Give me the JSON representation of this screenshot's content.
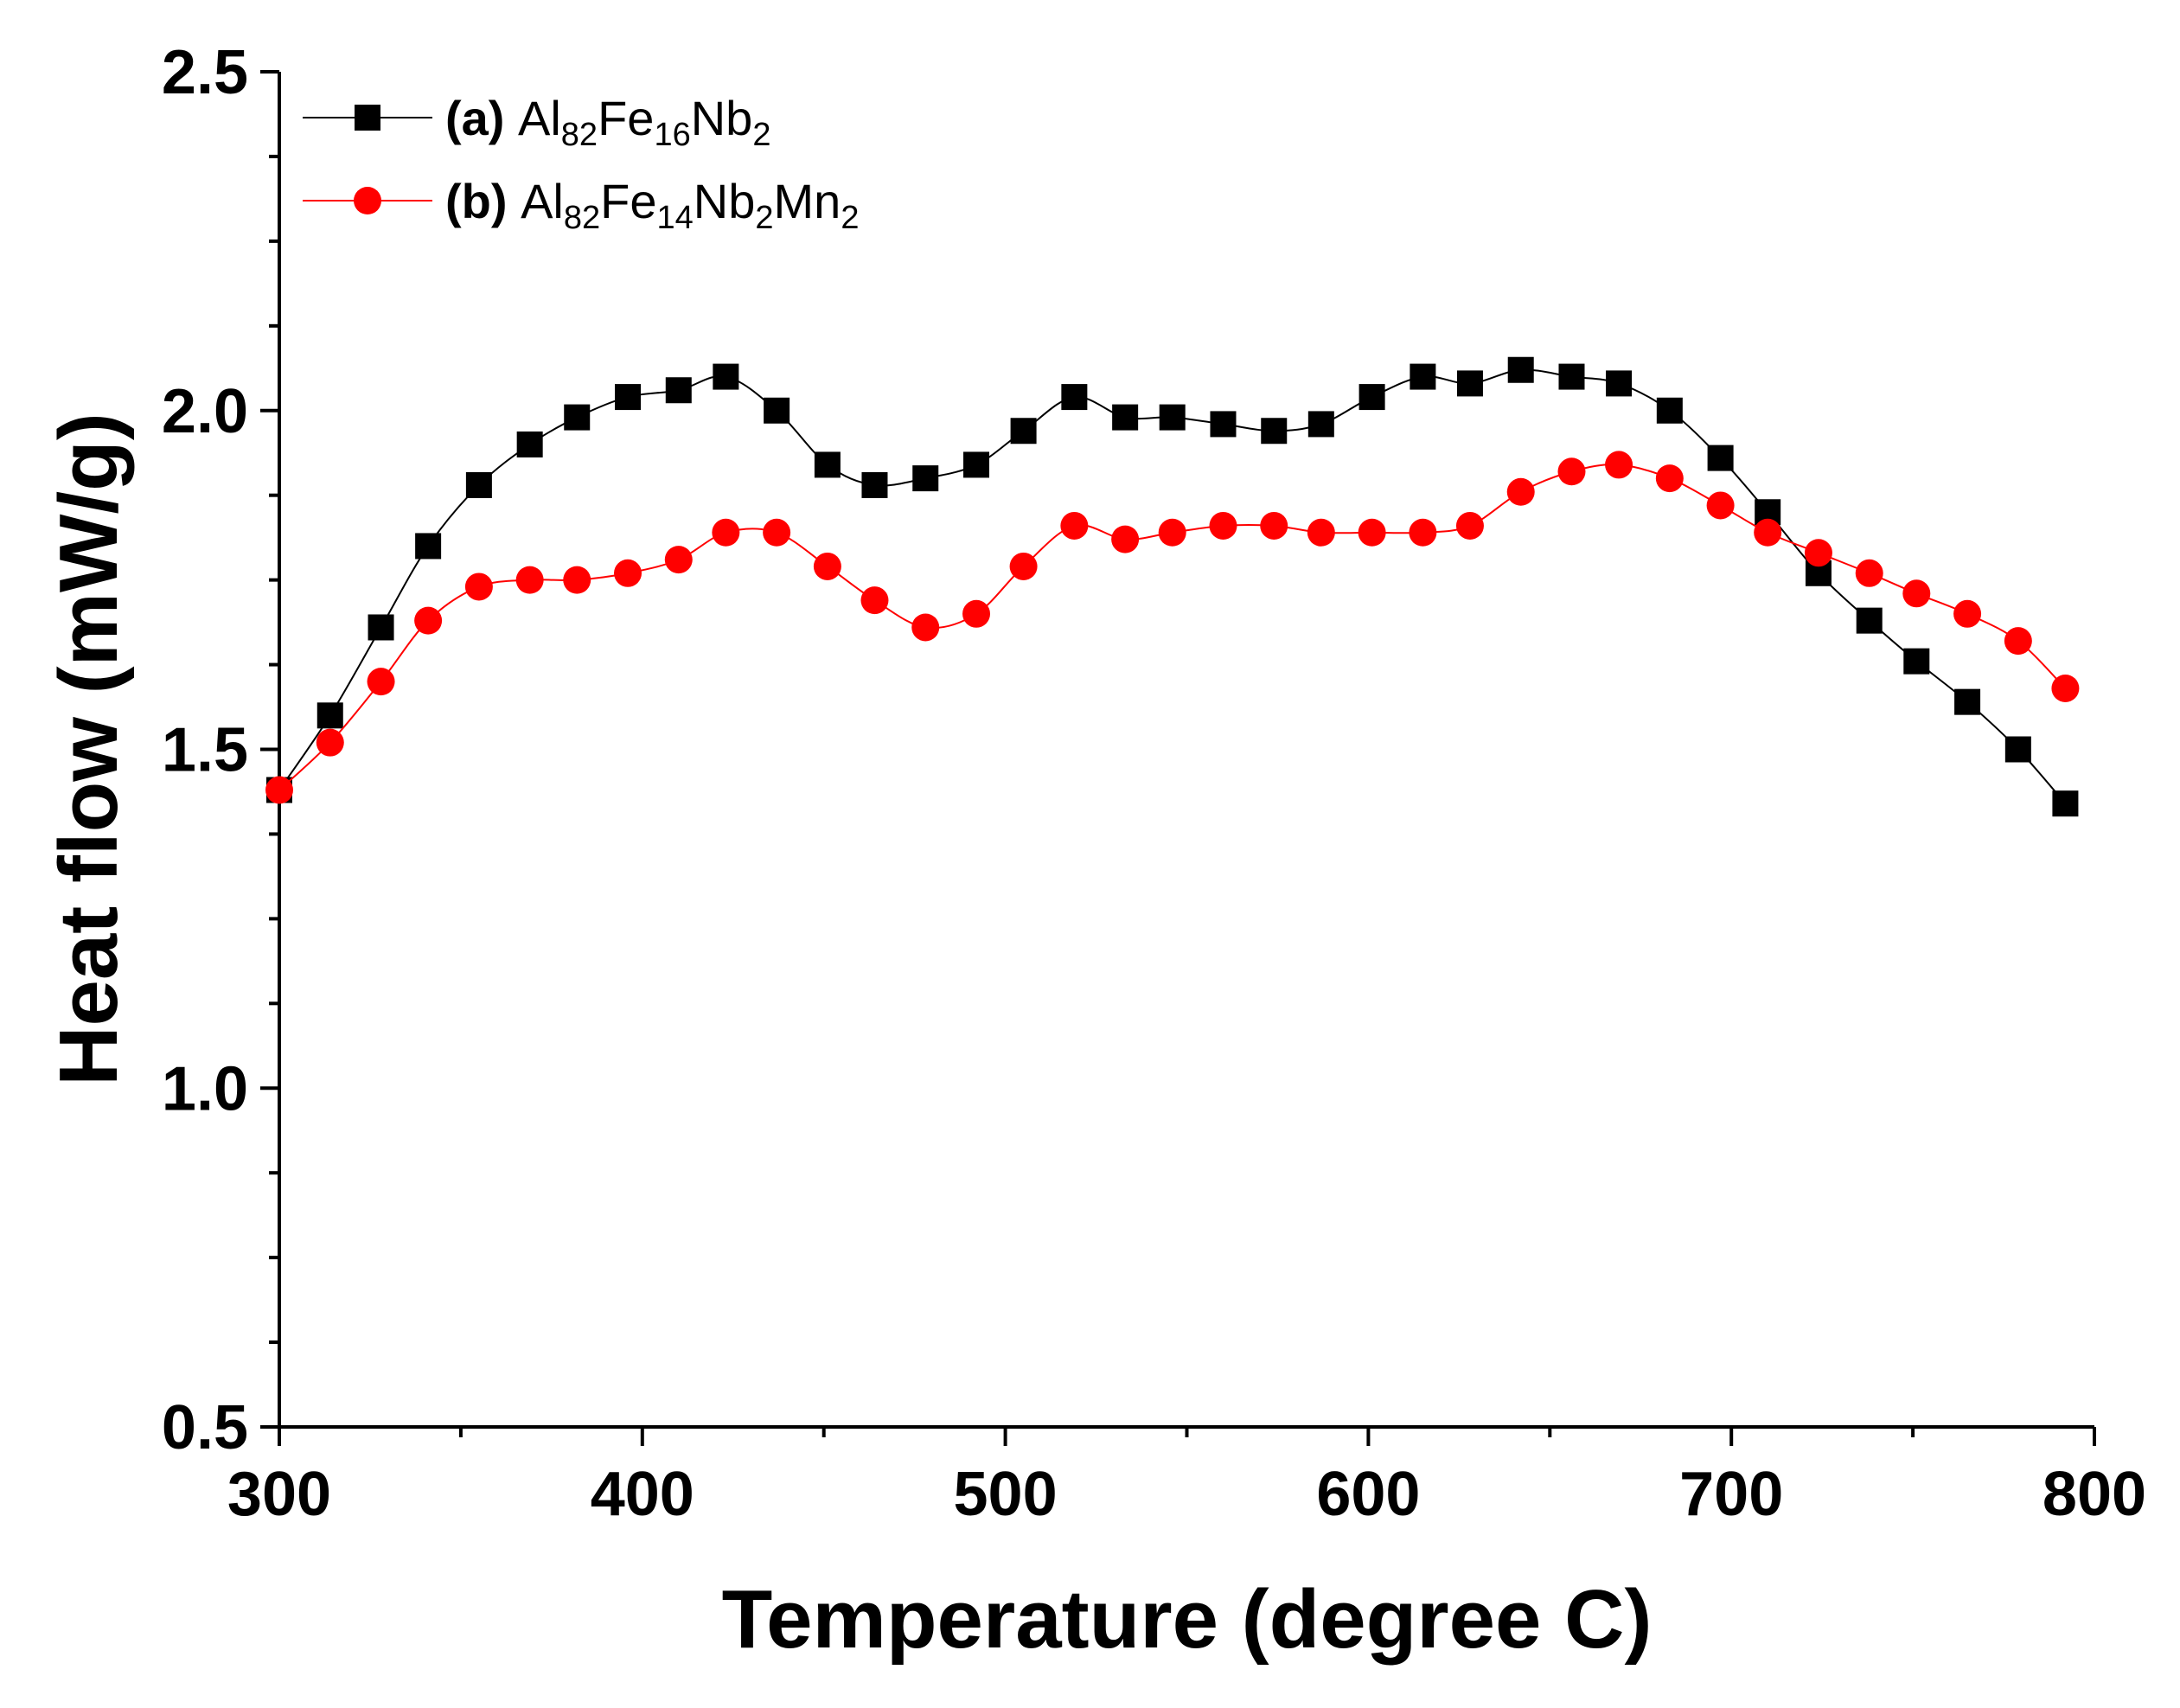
{
  "chart_data": {
    "type": "line",
    "xlabel": "Temperature (degree C)",
    "ylabel": "Heat flow (mW/g)",
    "xlim": [
      300,
      800
    ],
    "ylim": [
      0.5,
      2.5
    ],
    "x_ticks": [
      300,
      400,
      500,
      600,
      700,
      800
    ],
    "x_tick_labels": [
      "300",
      "400",
      "500",
      "600",
      "700",
      "800"
    ],
    "y_ticks": [
      0.5,
      1.0,
      1.5,
      2.0,
      2.5
    ],
    "y_tick_labels": [
      "0.5",
      "1.0",
      "1.5",
      "2.0",
      "2.5"
    ],
    "grid": false,
    "legend_position": "top-left",
    "series": [
      {
        "name": "(a) Al82Fe16Nb2",
        "label_prefix": "(a)",
        "label_parts": [
          {
            "t": "Al",
            "s": false
          },
          {
            "t": "82",
            "s": true
          },
          {
            "t": "Fe",
            "s": false
          },
          {
            "t": "16",
            "s": true
          },
          {
            "t": "Nb",
            "s": false
          },
          {
            "t": "2",
            "s": true
          }
        ],
        "color": "#000000",
        "marker": "square",
        "x": [
          300,
          314,
          328,
          341,
          355,
          369,
          382,
          396,
          410,
          423,
          437,
          451,
          464,
          478,
          492,
          505,
          519,
          533,
          546,
          560,
          574,
          587,
          601,
          615,
          628,
          642,
          656,
          669,
          683,
          697,
          710,
          724,
          738,
          751,
          765,
          779,
          792
        ],
        "y": [
          1.44,
          1.55,
          1.68,
          1.8,
          1.89,
          1.95,
          1.99,
          2.02,
          2.03,
          2.05,
          2.0,
          1.92,
          1.89,
          1.9,
          1.92,
          1.97,
          2.02,
          1.99,
          1.99,
          1.98,
          1.97,
          1.98,
          2.02,
          2.05,
          2.04,
          2.06,
          2.05,
          2.04,
          2.0,
          1.93,
          1.85,
          1.76,
          1.69,
          1.63,
          1.57,
          1.5,
          1.42
        ]
      },
      {
        "name": "(b) Al82Fe14Nb2Mn2",
        "label_prefix": "(b)",
        "label_parts": [
          {
            "t": "Al",
            "s": false
          },
          {
            "t": "82",
            "s": true
          },
          {
            "t": "Fe",
            "s": false
          },
          {
            "t": "14",
            "s": true
          },
          {
            "t": "Nb",
            "s": false
          },
          {
            "t": "2",
            "s": true
          },
          {
            "t": "Mn",
            "s": false
          },
          {
            "t": "2",
            "s": true
          }
        ],
        "color": "#ff0000",
        "marker": "circle",
        "x": [
          300,
          314,
          328,
          341,
          355,
          369,
          382,
          396,
          410,
          423,
          437,
          451,
          464,
          478,
          492,
          505,
          519,
          533,
          546,
          560,
          574,
          587,
          601,
          615,
          628,
          642,
          656,
          669,
          683,
          697,
          710,
          724,
          738,
          751,
          765,
          779,
          792
        ],
        "y": [
          1.44,
          1.51,
          1.6,
          1.69,
          1.74,
          1.75,
          1.75,
          1.76,
          1.78,
          1.82,
          1.82,
          1.77,
          1.72,
          1.68,
          1.7,
          1.77,
          1.83,
          1.81,
          1.82,
          1.83,
          1.83,
          1.82,
          1.82,
          1.82,
          1.83,
          1.88,
          1.91,
          1.92,
          1.9,
          1.86,
          1.82,
          1.79,
          1.76,
          1.73,
          1.7,
          1.66,
          1.59
        ]
      }
    ]
  }
}
